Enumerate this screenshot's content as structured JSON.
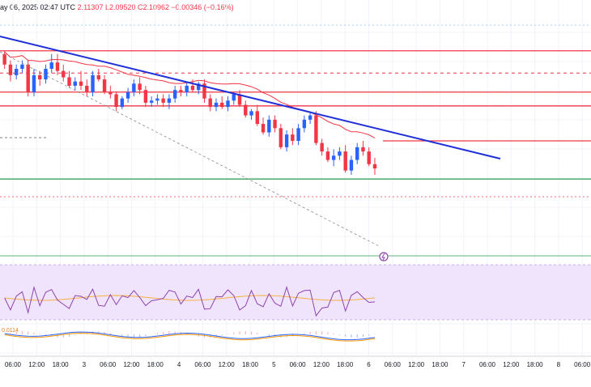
{
  "header": {
    "text": "ay 06, 2025 02:47 UTC",
    "ohlc": "2.11307  L2.09520  C2.10962  −0.00346 (−0.16%)"
  },
  "colors": {
    "up": "#2962ff",
    "down": "#f23645",
    "trendline": "#1f2fd8",
    "ma": "#f23645",
    "support_green": "#2e9e4f",
    "rsi_bg": "#efe4fb",
    "rsi_line": "#8e44ad",
    "rsi_ma": "#f5b041",
    "macd_line": "#2962ff",
    "macd_signal": "#ff9800"
  },
  "indicator_label": "0.0114",
  "chart_data": {
    "type": "candlestick",
    "x_ticks": [
      "06:00",
      "12:00",
      "18:00",
      "3",
      "06:00",
      "12:00",
      "18:00",
      "4",
      "06:00",
      "12:00",
      "18:00",
      "5",
      "06:00",
      "12:00",
      "18:00",
      "6",
      "06:00",
      "12:00",
      "18:00",
      "7",
      "06:00",
      "12:00",
      "18:00",
      "8",
      "06:00"
    ],
    "price_range": [
      2.08,
      2.3
    ],
    "horizontal_levels": [
      {
        "price": 2.275,
        "color": "#f23645",
        "style": "solid"
      },
      {
        "price": 2.254,
        "color": "#f23645",
        "style": "dashed"
      },
      {
        "price": 2.236,
        "color": "#f23645",
        "style": "solid"
      },
      {
        "price": 2.223,
        "color": "#f23645",
        "style": "solid"
      },
      {
        "price": 2.19,
        "color": "#f23645",
        "style": "solid",
        "from_index": 79
      },
      {
        "price": 2.154,
        "color": "#2e9e4f",
        "style": "solid"
      }
    ],
    "trendline": {
      "from": [
        0,
        2.284
      ],
      "to": [
        205,
        2.205
      ]
    },
    "channel_support": {
      "from": [
        0,
        2.264
      ],
      "to": [
        157,
        2.155
      ]
    },
    "candles": [
      [
        2.272,
        2.275,
        2.258,
        2.262
      ],
      [
        2.262,
        2.266,
        2.246,
        2.252
      ],
      [
        2.252,
        2.262,
        2.248,
        2.258
      ],
      [
        2.258,
        2.266,
        2.254,
        2.262
      ],
      [
        2.262,
        2.266,
        2.232,
        2.236
      ],
      [
        2.236,
        2.258,
        2.232,
        2.252
      ],
      [
        2.252,
        2.256,
        2.242,
        2.248
      ],
      [
        2.248,
        2.262,
        2.244,
        2.258
      ],
      [
        2.258,
        2.272,
        2.254,
        2.264
      ],
      [
        2.264,
        2.272,
        2.252,
        2.256
      ],
      [
        2.256,
        2.262,
        2.246,
        2.25
      ],
      [
        2.25,
        2.256,
        2.24,
        2.242
      ],
      [
        2.242,
        2.25,
        2.238,
        2.246
      ],
      [
        2.246,
        2.256,
        2.238,
        2.242
      ],
      [
        2.242,
        2.248,
        2.232,
        2.236
      ],
      [
        2.236,
        2.256,
        2.232,
        2.252
      ],
      [
        2.252,
        2.258,
        2.246,
        2.248
      ],
      [
        2.248,
        2.252,
        2.234,
        2.236
      ],
      [
        2.236,
        2.242,
        2.23,
        2.234
      ],
      [
        2.234,
        2.236,
        2.218,
        2.222
      ],
      [
        2.222,
        2.232,
        2.22,
        2.23
      ],
      [
        2.23,
        2.24,
        2.226,
        2.236
      ],
      [
        2.236,
        2.248,
        2.232,
        2.244
      ],
      [
        2.244,
        2.25,
        2.234,
        2.238
      ],
      [
        2.238,
        2.242,
        2.222,
        2.226
      ],
      [
        2.226,
        2.232,
        2.222,
        2.228
      ],
      [
        2.228,
        2.234,
        2.224,
        2.23
      ],
      [
        2.23,
        2.234,
        2.222,
        2.226
      ],
      [
        2.226,
        2.234,
        2.22,
        2.23
      ],
      [
        2.23,
        2.242,
        2.226,
        2.238
      ],
      [
        2.238,
        2.242,
        2.232,
        2.236
      ],
      [
        2.236,
        2.246,
        2.232,
        2.242
      ],
      [
        2.242,
        2.248,
        2.236,
        2.238
      ],
      [
        2.238,
        2.246,
        2.234,
        2.244
      ],
      [
        2.244,
        2.248,
        2.226,
        2.23
      ],
      [
        2.23,
        2.234,
        2.218,
        2.222
      ],
      [
        2.222,
        2.23,
        2.218,
        2.226
      ],
      [
        2.226,
        2.232,
        2.22,
        2.222
      ],
      [
        2.222,
        2.232,
        2.218,
        2.228
      ],
      [
        2.228,
        2.236,
        2.224,
        2.234
      ],
      [
        2.234,
        2.238,
        2.222,
        2.224
      ],
      [
        2.224,
        2.228,
        2.212,
        2.214
      ],
      [
        2.214,
        2.22,
        2.21,
        2.218
      ],
      [
        2.218,
        2.224,
        2.204,
        2.206
      ],
      [
        2.206,
        2.212,
        2.196,
        2.198
      ],
      [
        2.198,
        2.214,
        2.194,
        2.21
      ],
      [
        2.21,
        2.214,
        2.198,
        2.202
      ],
      [
        2.202,
        2.206,
        2.182,
        2.184
      ],
      [
        2.184,
        2.2,
        2.18,
        2.196
      ],
      [
        2.196,
        2.202,
        2.186,
        2.19
      ],
      [
        2.19,
        2.206,
        2.186,
        2.202
      ],
      [
        2.202,
        2.214,
        2.198,
        2.21
      ],
      [
        2.21,
        2.218,
        2.206,
        2.214
      ],
      [
        2.214,
        2.218,
        2.186,
        2.188
      ],
      [
        2.188,
        2.192,
        2.176,
        2.18
      ],
      [
        2.18,
        2.184,
        2.17,
        2.172
      ],
      [
        2.172,
        2.182,
        2.166,
        2.176
      ],
      [
        2.176,
        2.184,
        2.172,
        2.18
      ],
      [
        2.18,
        2.186,
        2.16,
        2.162
      ],
      [
        2.162,
        2.176,
        2.158,
        2.172
      ],
      [
        2.172,
        2.188,
        2.168,
        2.184
      ],
      [
        2.184,
        2.19,
        2.176,
        2.18
      ],
      [
        2.18,
        2.184,
        2.166,
        2.168
      ],
      [
        2.168,
        2.174,
        2.158,
        2.164
      ]
    ]
  }
}
